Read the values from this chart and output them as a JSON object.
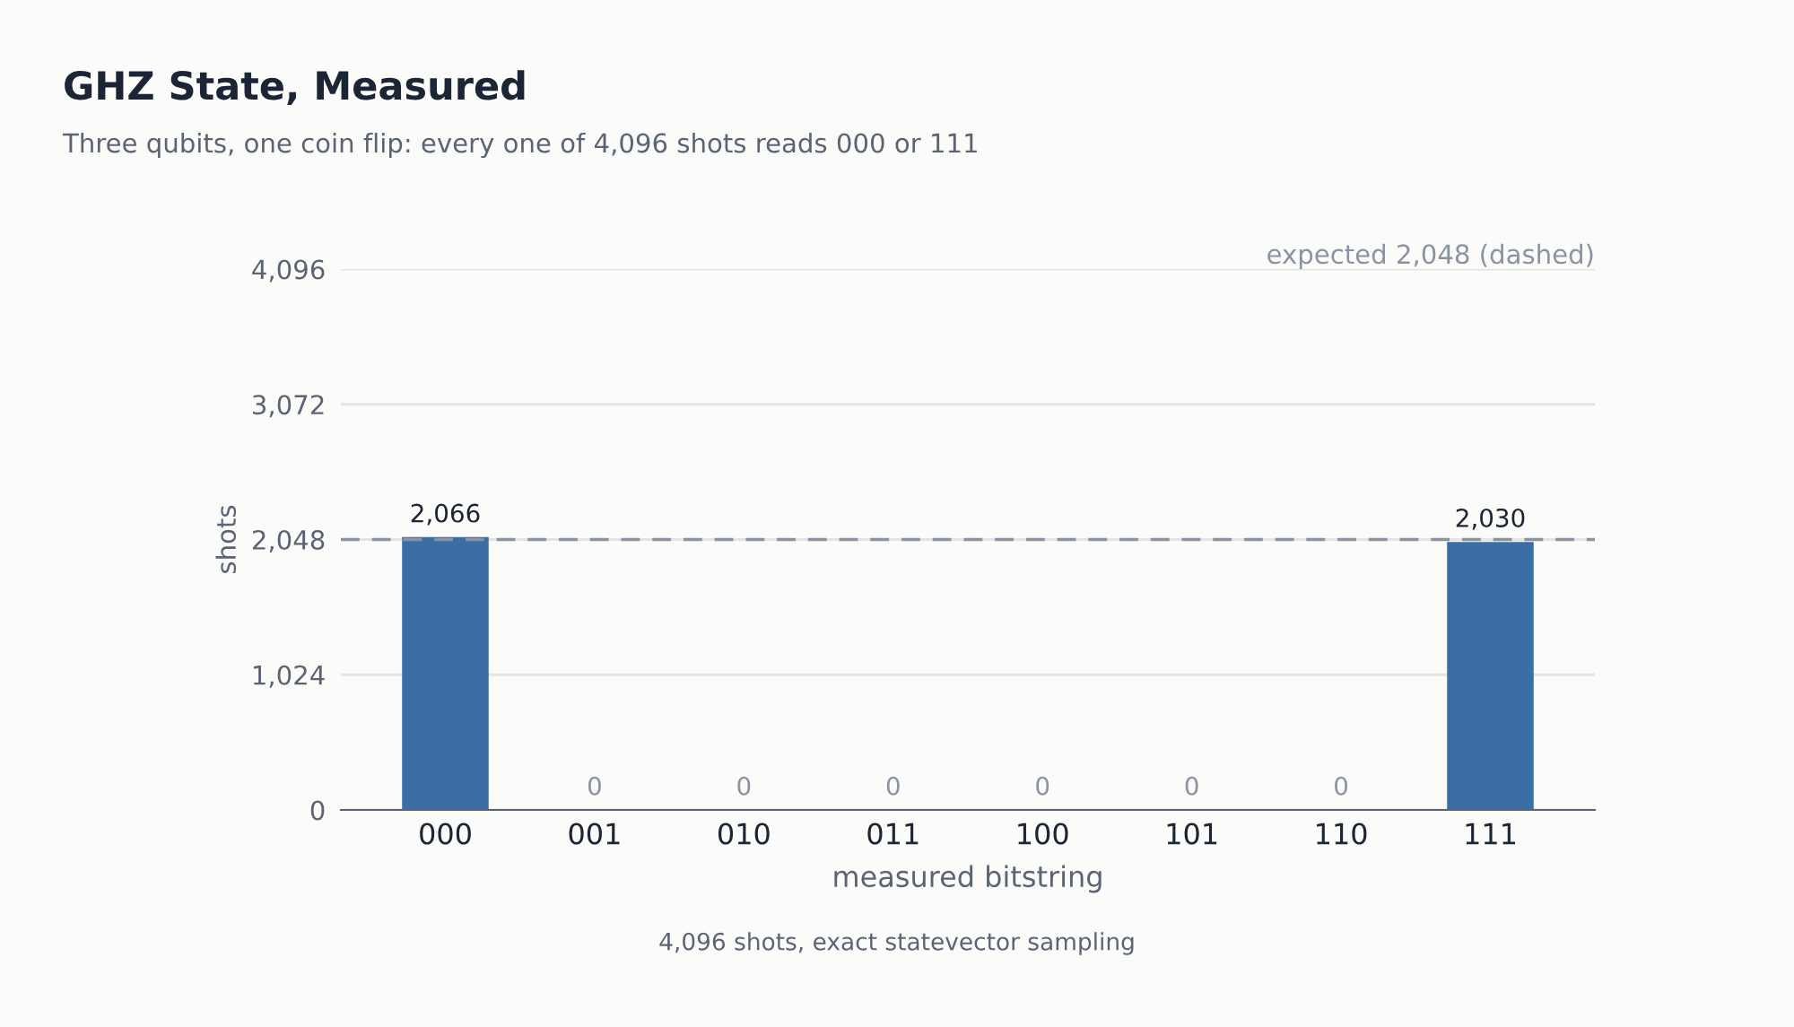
{
  "chart_data": {
    "type": "bar",
    "title": "GHZ State, Measured",
    "subtitle": "Three qubits, one coin flip: every one of 4,096 shots reads 000 or 111",
    "xlabel": "measured bitstring",
    "ylabel": "shots",
    "categories": [
      "000",
      "001",
      "010",
      "011",
      "100",
      "101",
      "110",
      "111"
    ],
    "values": [
      2066,
      0,
      0,
      0,
      0,
      0,
      0,
      2030
    ],
    "value_labels": [
      "2,066",
      "0",
      "0",
      "0",
      "0",
      "0",
      "0",
      "2,030"
    ],
    "color": "#3b6ea5",
    "ylim": [
      0,
      4096
    ],
    "yticks": [
      0,
      {
        "value": 1024,
        "label": "1,024"
      },
      {
        "value": 2048,
        "label": "2,048"
      },
      {
        "value": 3072,
        "label": "3,072"
      },
      {
        "value": 4096,
        "label": "4,096"
      }
    ],
    "grid": "y",
    "ref_lines": [
      {
        "axis": "y",
        "value": 2048,
        "label": "expected 2,048 (dashed)",
        "color": "#8a93a3",
        "line_style": "dashed"
      }
    ],
    "annotations": [
      "4,096 shots, exact statevector sampling"
    ]
  }
}
